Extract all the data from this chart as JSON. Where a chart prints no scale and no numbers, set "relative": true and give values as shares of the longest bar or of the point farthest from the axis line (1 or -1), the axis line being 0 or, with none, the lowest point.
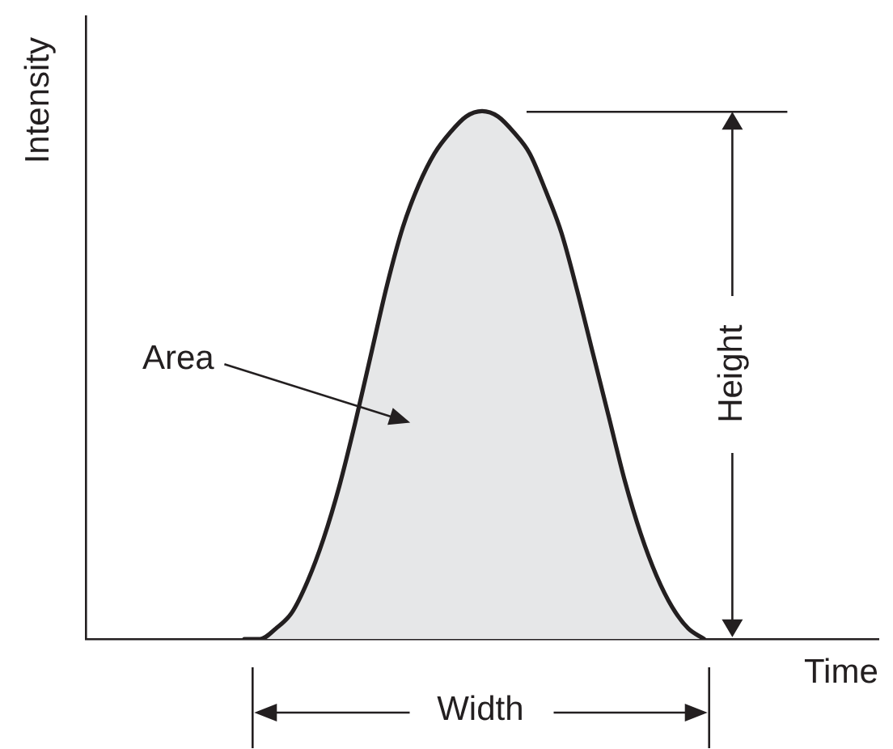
{
  "chart_data": {
    "type": "area",
    "xlabel": "Time",
    "ylabel": "Intensity",
    "relative": true,
    "categories": [
      null,
      null,
      null,
      null,
      null,
      null,
      null,
      null,
      null,
      null,
      null,
      null,
      null,
      null,
      null,
      null,
      null,
      null,
      null,
      null,
      null,
      null,
      null,
      null,
      null,
      null,
      null,
      null,
      null,
      null,
      null,
      null,
      null,
      null,
      null,
      null,
      null,
      null,
      null,
      null,
      null,
      null,
      null,
      null,
      null,
      null,
      null,
      null,
      null,
      null,
      null
    ],
    "values": [
      null,
      null,
      null,
      null,
      null,
      null,
      null,
      null,
      null,
      null,
      0,
      0,
      0.02,
      0.05,
      0.11,
      0.19,
      0.29,
      0.41,
      0.54,
      0.67,
      0.78,
      0.86,
      0.92,
      0.96,
      0.99,
      1,
      0.99,
      0.96,
      0.92,
      0.85,
      0.77,
      0.66,
      0.54,
      0.42,
      0.3,
      0.2,
      0.12,
      0.06,
      0.02,
      0,
      null,
      null,
      null,
      null,
      null,
      null,
      null,
      null,
      null,
      null,
      null
    ],
    "color": "#e6e7e8",
    "annotations": [
      "Area",
      "Height",
      "Width"
    ]
  }
}
